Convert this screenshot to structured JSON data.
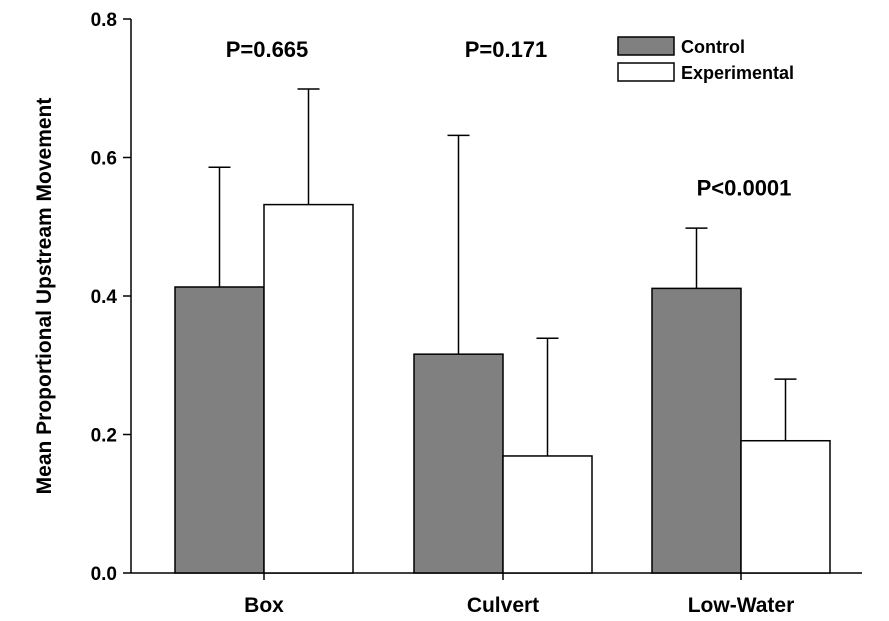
{
  "chart_data": {
    "type": "bar",
    "title": "",
    "xlabel": "",
    "ylabel": "Mean Proportional Upstream Movement",
    "ylim": [
      0,
      0.8
    ],
    "yticks": [
      "0.0",
      "0.2",
      "0.4",
      "0.6",
      "0.8"
    ],
    "categories": [
      "Box",
      "Culvert",
      "Low-Water"
    ],
    "series": [
      {
        "name": "Control",
        "color": "#808080",
        "values": [
          0.413,
          0.316,
          0.411
        ],
        "error_upper": [
          0.586,
          0.632,
          0.498
        ]
      },
      {
        "name": "Experimental",
        "color": "#ffffff",
        "values": [
          0.532,
          0.169,
          0.191
        ],
        "error_upper": [
          0.699,
          0.339,
          0.28
        ]
      }
    ],
    "annotations": [
      "P=0.665",
      "P=0.171",
      "P<0.0001"
    ],
    "annotation_y": [
      0.745,
      0.745,
      0.545
    ],
    "legend_position": "top-right",
    "grid": false
  }
}
